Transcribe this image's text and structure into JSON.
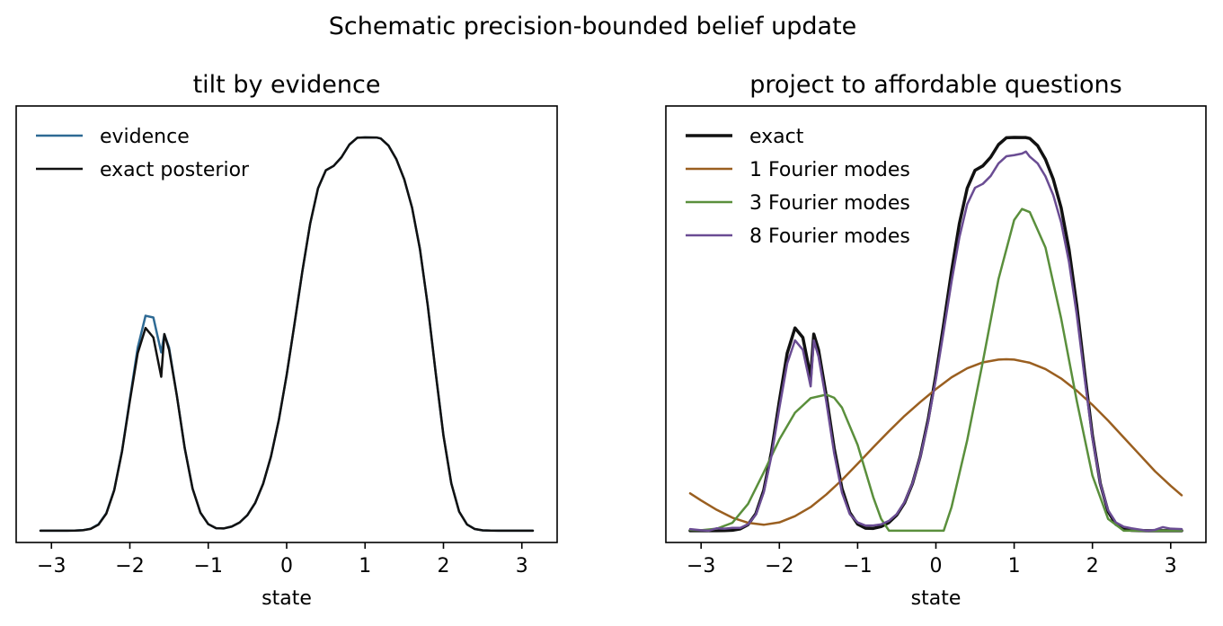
{
  "figure": {
    "suptitle": "Schematic precision-bounded belief update"
  },
  "chart_data": [
    {
      "type": "line",
      "title": "tilt by evidence",
      "xlabel": "state",
      "ylabel": "",
      "xlim": [
        -3.45,
        3.45
      ],
      "ylim": [
        -0.03,
        1.08
      ],
      "xticks": [
        -3,
        -2,
        -1,
        0,
        1,
        2,
        3
      ],
      "xtick_labels": [
        "−3",
        "−2",
        "−1",
        "0",
        "1",
        "2",
        "3"
      ],
      "yticks_visible": false,
      "grid": false,
      "legend_position": "top-left",
      "series": [
        {
          "name": "evidence",
          "color": "#2e6a94",
          "linewidth": 2.5,
          "x": [
            -3.14,
            -3.0,
            -2.9,
            -2.8,
            -2.7,
            -2.6,
            -2.5,
            -2.4,
            -2.3,
            -2.2,
            -2.1,
            -2.0,
            -1.9,
            -1.8,
            -1.7,
            -1.6,
            -1.56,
            -1.5,
            -1.4,
            -1.3,
            -1.2,
            -1.1,
            -1.0,
            -0.9,
            -0.8,
            -0.7,
            -0.6,
            -0.5,
            -0.4,
            -0.3,
            -0.2,
            -0.1,
            0.0,
            0.1,
            0.2,
            0.3,
            0.4,
            0.5,
            0.6,
            0.7,
            0.8,
            0.9,
            1.0,
            1.1,
            1.15,
            1.2,
            1.3,
            1.4,
            1.5,
            1.6,
            1.7,
            1.8,
            1.9,
            2.0,
            2.1,
            2.2,
            2.3,
            2.4,
            2.5,
            2.6,
            2.7,
            2.8,
            2.9,
            3.0,
            3.14
          ],
          "y": [
            0.0,
            0.0,
            0.0,
            0.0,
            0.0003,
            0.0013,
            0.005,
            0.0163,
            0.0447,
            0.1036,
            0.2026,
            0.3341,
            0.4651,
            0.5466,
            0.5421,
            0.4534,
            0.4999,
            0.4661,
            0.3427,
            0.2097,
            0.1071,
            0.0459,
            0.0167,
            0.0063,
            0.0058,
            0.0105,
            0.0208,
            0.0397,
            0.071,
            0.1193,
            0.1887,
            0.2814,
            0.3958,
            0.5256,
            0.6594,
            0.7808,
            0.8708,
            0.9164,
            0.9277,
            0.9498,
            0.9818,
            0.9992,
            1.0,
            0.9999,
            0.9996,
            0.9973,
            0.979,
            0.9443,
            0.8935,
            0.8212,
            0.7162,
            0.5724,
            0.403,
            0.2419,
            0.1203,
            0.0486,
            0.0159,
            0.0042,
            0.0009,
            0.0002,
            0.0,
            0.0,
            0.0,
            0.0,
            0.0
          ]
        },
        {
          "name": "exact posterior",
          "color": "#111111",
          "linewidth": 2.5,
          "x": [
            -3.14,
            -3.0,
            -2.9,
            -2.8,
            -2.7,
            -2.6,
            -2.5,
            -2.4,
            -2.3,
            -2.2,
            -2.1,
            -2.0,
            -1.9,
            -1.8,
            -1.7,
            -1.6,
            -1.56,
            -1.5,
            -1.4,
            -1.3,
            -1.2,
            -1.1,
            -1.0,
            -0.9,
            -0.8,
            -0.7,
            -0.6,
            -0.5,
            -0.4,
            -0.3,
            -0.2,
            -0.1,
            0.0,
            0.1,
            0.2,
            0.3,
            0.4,
            0.5,
            0.6,
            0.7,
            0.8,
            0.9,
            1.0,
            1.1,
            1.15,
            1.2,
            1.3,
            1.4,
            1.5,
            1.6,
            1.7,
            1.8,
            1.9,
            2.0,
            2.1,
            2.2,
            2.3,
            2.4,
            2.5,
            2.6,
            2.7,
            2.8,
            2.9,
            3.0,
            3.14
          ],
          "y": [
            0.0,
            0.0,
            0.0,
            0.0,
            0.0002,
            0.0011,
            0.0045,
            0.0153,
            0.0434,
            0.1023,
            0.2011,
            0.3299,
            0.4512,
            0.5155,
            0.4913,
            0.3913,
            0.5,
            0.4603,
            0.3424,
            0.2097,
            0.1071,
            0.0459,
            0.0167,
            0.0063,
            0.0058,
            0.0105,
            0.0208,
            0.0397,
            0.071,
            0.1193,
            0.1887,
            0.2814,
            0.3958,
            0.5256,
            0.6594,
            0.7808,
            0.8708,
            0.9164,
            0.9277,
            0.9498,
            0.9818,
            0.9992,
            1.0,
            0.9999,
            0.9997,
            0.9973,
            0.979,
            0.9443,
            0.8935,
            0.8212,
            0.7162,
            0.5724,
            0.403,
            0.2419,
            0.1203,
            0.0486,
            0.0159,
            0.0042,
            0.0009,
            0.0002,
            0.0,
            0.0,
            0.0,
            0.0,
            0.0
          ]
        }
      ]
    },
    {
      "type": "line",
      "title": "project to affordable questions",
      "xlabel": "state",
      "ylabel": "",
      "xlim": [
        -3.45,
        3.45
      ],
      "ylim": [
        -0.03,
        1.08
      ],
      "xticks": [
        -3,
        -2,
        -1,
        0,
        1,
        2,
        3
      ],
      "xtick_labels": [
        "−3",
        "−2",
        "−1",
        "0",
        "1",
        "2",
        "3"
      ],
      "yticks_visible": false,
      "grid": false,
      "legend_position": "top-left",
      "series": [
        {
          "name": "exact",
          "color": "#111111",
          "linewidth": 3.5,
          "x": [
            -3.14,
            -3.0,
            -2.9,
            -2.8,
            -2.7,
            -2.6,
            -2.5,
            -2.4,
            -2.3,
            -2.2,
            -2.1,
            -2.0,
            -1.9,
            -1.8,
            -1.7,
            -1.6,
            -1.56,
            -1.5,
            -1.4,
            -1.3,
            -1.2,
            -1.1,
            -1.0,
            -0.9,
            -0.8,
            -0.7,
            -0.6,
            -0.5,
            -0.4,
            -0.3,
            -0.2,
            -0.1,
            0.0,
            0.1,
            0.2,
            0.3,
            0.4,
            0.5,
            0.6,
            0.7,
            0.8,
            0.9,
            1.0,
            1.1,
            1.15,
            1.2,
            1.3,
            1.4,
            1.5,
            1.6,
            1.7,
            1.8,
            1.9,
            2.0,
            2.1,
            2.2,
            2.3,
            2.4,
            2.5,
            2.6,
            2.7,
            2.8,
            2.9,
            3.0,
            3.14
          ],
          "y": [
            0.0,
            0.0,
            0.0,
            0.0,
            0.0002,
            0.0011,
            0.0045,
            0.0153,
            0.0434,
            0.1023,
            0.2011,
            0.3299,
            0.4512,
            0.5155,
            0.4913,
            0.3913,
            0.5,
            0.4603,
            0.3424,
            0.2097,
            0.1071,
            0.0459,
            0.0167,
            0.0063,
            0.0058,
            0.0105,
            0.0208,
            0.0397,
            0.071,
            0.1193,
            0.1887,
            0.2814,
            0.3958,
            0.5256,
            0.6594,
            0.7808,
            0.8708,
            0.9164,
            0.9277,
            0.9498,
            0.9818,
            0.9992,
            1.0,
            0.9999,
            0.9997,
            0.9973,
            0.979,
            0.9443,
            0.8935,
            0.8212,
            0.7162,
            0.5724,
            0.403,
            0.2419,
            0.1203,
            0.0486,
            0.0159,
            0.0042,
            0.0009,
            0.0002,
            0.0,
            0.0,
            0.0,
            0.0,
            0.0
          ]
        },
        {
          "name": "1 Fourier modes",
          "color": "#9a5f20",
          "linewidth": 2.5,
          "x": [
            -3.14,
            -3.0,
            -2.8,
            -2.6,
            -2.4,
            -2.2,
            -2.0,
            -1.8,
            -1.6,
            -1.4,
            -1.2,
            -1.0,
            -0.8,
            -0.6,
            -0.4,
            -0.2,
            0.0,
            0.2,
            0.4,
            0.6,
            0.8,
            0.9,
            1.0,
            1.2,
            1.4,
            1.6,
            1.8,
            2.0,
            2.2,
            2.4,
            2.6,
            2.8,
            3.0,
            3.14
          ],
          "y": [
            0.095,
            0.077,
            0.053,
            0.033,
            0.02,
            0.015,
            0.021,
            0.037,
            0.06,
            0.092,
            0.129,
            0.17,
            0.212,
            0.253,
            0.292,
            0.327,
            0.36,
            0.39,
            0.413,
            0.428,
            0.435,
            0.436,
            0.435,
            0.427,
            0.411,
            0.387,
            0.356,
            0.32,
            0.28,
            0.237,
            0.194,
            0.151,
            0.114,
            0.09
          ]
        },
        {
          "name": "3 Fourier modes",
          "color": "#5a8f3c",
          "linewidth": 2.5,
          "x": [
            -3.14,
            -3.0,
            -2.8,
            -2.6,
            -2.4,
            -2.2,
            -2.0,
            -1.8,
            -1.6,
            -1.4,
            -1.3,
            -1.2,
            -1.0,
            -0.8,
            -0.7,
            -0.6,
            -0.4,
            -0.2,
            0.0,
            0.1,
            0.2,
            0.4,
            0.6,
            0.8,
            1.0,
            1.1,
            1.2,
            1.4,
            1.6,
            1.8,
            2.0,
            2.2,
            2.4,
            2.6,
            2.8,
            3.0,
            3.14
          ],
          "y": [
            0.002,
            0.001,
            0.005,
            0.02,
            0.068,
            0.148,
            0.232,
            0.3,
            0.337,
            0.346,
            0.338,
            0.313,
            0.218,
            0.085,
            0.03,
            0.0,
            0.0,
            0.0,
            0.0,
            0.0,
            0.06,
            0.23,
            0.43,
            0.64,
            0.79,
            0.818,
            0.81,
            0.72,
            0.54,
            0.33,
            0.14,
            0.03,
            0.0,
            0.0,
            0.0,
            0.0,
            0.0
          ]
        },
        {
          "name": "8 Fourier modes",
          "color": "#6a4c93",
          "linewidth": 2.5,
          "x": [
            -3.14,
            -3.0,
            -2.9,
            -2.8,
            -2.7,
            -2.6,
            -2.5,
            -2.4,
            -2.3,
            -2.2,
            -2.1,
            -2.0,
            -1.9,
            -1.8,
            -1.7,
            -1.6,
            -1.56,
            -1.5,
            -1.4,
            -1.3,
            -1.2,
            -1.1,
            -1.0,
            -0.9,
            -0.8,
            -0.7,
            -0.6,
            -0.5,
            -0.4,
            -0.3,
            -0.2,
            -0.1,
            0.0,
            0.1,
            0.2,
            0.3,
            0.4,
            0.5,
            0.6,
            0.7,
            0.8,
            0.9,
            1.0,
            1.1,
            1.15,
            1.2,
            1.3,
            1.4,
            1.5,
            1.6,
            1.7,
            1.8,
            1.9,
            2.0,
            2.1,
            2.2,
            2.3,
            2.4,
            2.5,
            2.6,
            2.7,
            2.8,
            2.9,
            3.0,
            3.14
          ],
          "y": [
            0.004,
            0.001,
            0.0,
            0.006,
            0.005,
            0.007,
            0.007,
            0.016,
            0.041,
            0.097,
            0.191,
            0.312,
            0.425,
            0.484,
            0.46,
            0.367,
            0.484,
            0.443,
            0.328,
            0.197,
            0.097,
            0.042,
            0.021,
            0.013,
            0.013,
            0.016,
            0.025,
            0.042,
            0.073,
            0.12,
            0.187,
            0.276,
            0.386,
            0.508,
            0.633,
            0.746,
            0.83,
            0.872,
            0.882,
            0.902,
            0.934,
            0.952,
            0.955,
            0.959,
            0.964,
            0.951,
            0.934,
            0.901,
            0.853,
            0.784,
            0.684,
            0.549,
            0.389,
            0.236,
            0.12,
            0.052,
            0.021,
            0.01,
            0.006,
            0.003,
            0.0,
            0.002,
            0.009,
            0.005,
            0.004
          ]
        }
      ]
    }
  ]
}
